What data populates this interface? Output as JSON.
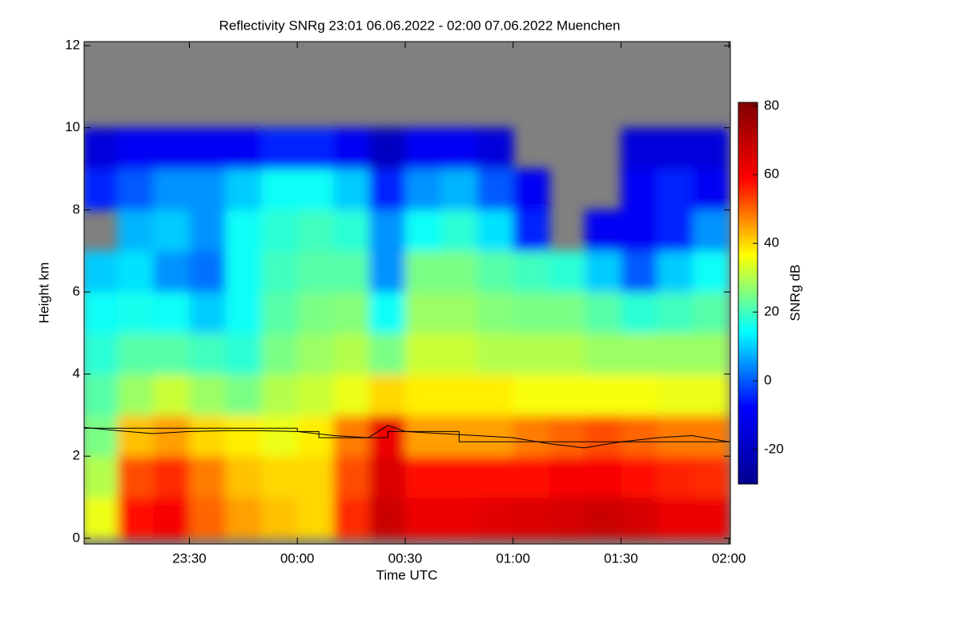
{
  "chart_data": {
    "type": "heatmap",
    "title": "Reflectivity SNRg   23:01 06.06.2022 - 02:00 07.06.2022 Muenchen",
    "x_label": "Time UTC",
    "y_label": "Height km",
    "colorbar_label": "SNRg dB",
    "xlim": [
      23.012,
      26.007
    ],
    "xticks": [
      {
        "value": 23.5,
        "label": "23:30"
      },
      {
        "value": 24,
        "label": "00:00"
      },
      {
        "value": 24.5,
        "label": "00:30"
      },
      {
        "value": 25,
        "label": "01:00"
      },
      {
        "value": 25.5,
        "label": "01:30"
      },
      {
        "value": 26,
        "label": "02:00"
      }
    ],
    "ylim": [
      -0.14,
      12.1
    ],
    "yticks": [
      0,
      2,
      4,
      6,
      8,
      10,
      12
    ],
    "zlim": [
      -30,
      81
    ],
    "zticks": [
      -20,
      0,
      20,
      40,
      60,
      80
    ],
    "colormap": [
      "#00008f",
      "#0000ff",
      "#00ffff",
      "#ffff00",
      "#ff0000",
      "#800000"
    ],
    "missing_color": "#808080",
    "x_bins": [
      23,
      23.167,
      23.333,
      23.5,
      23.667,
      23.833,
      24,
      24.167,
      24.333,
      24.5,
      24.667,
      24.833,
      25,
      25.167,
      25.333,
      25.5,
      25.667,
      25.833,
      26
    ],
    "y_bins": [
      0,
      1,
      2,
      3,
      4,
      5,
      6,
      7,
      8,
      9,
      10,
      11,
      12
    ],
    "z": [
      [
        35,
        58,
        60,
        50,
        45,
        42,
        40,
        55,
        68,
        62,
        62,
        64,
        65,
        66,
        68,
        66,
        62,
        62
      ],
      [
        30,
        52,
        55,
        48,
        42,
        40,
        40,
        52,
        65,
        58,
        58,
        58,
        58,
        60,
        60,
        58,
        56,
        55
      ],
      [
        25,
        42,
        45,
        40,
        38,
        35,
        38,
        48,
        62,
        45,
        45,
        45,
        48,
        50,
        52,
        50,
        48,
        48
      ],
      [
        22,
        28,
        32,
        28,
        25,
        30,
        32,
        35,
        40,
        38,
        38,
        38,
        36,
        36,
        36,
        36,
        35,
        35
      ],
      [
        18,
        22,
        22,
        20,
        18,
        25,
        28,
        30,
        25,
        32,
        32,
        30,
        30,
        30,
        28,
        28,
        28,
        28
      ],
      [
        15,
        16,
        15,
        10,
        15,
        22,
        25,
        26,
        15,
        28,
        28,
        26,
        25,
        25,
        22,
        18,
        20,
        22
      ],
      [
        10,
        12,
        5,
        2,
        15,
        20,
        22,
        22,
        5,
        25,
        25,
        22,
        20,
        18,
        10,
        0,
        10,
        15
      ],
      [
        null,
        8,
        10,
        5,
        15,
        18,
        20,
        18,
        5,
        15,
        18,
        12,
        -5,
        null,
        -10,
        -10,
        -5,
        5
      ],
      [
        -5,
        0,
        5,
        5,
        10,
        15,
        15,
        10,
        -5,
        5,
        8,
        0,
        -10,
        null,
        null,
        -10,
        -5,
        -10
      ],
      [
        -15,
        -10,
        -10,
        -10,
        -10,
        -5,
        -5,
        -10,
        -20,
        -10,
        -10,
        -15,
        null,
        null,
        null,
        -15,
        -15,
        -15
      ],
      [
        null,
        null,
        null,
        null,
        null,
        null,
        null,
        null,
        null,
        null,
        null,
        null,
        null,
        null,
        null,
        null,
        null,
        null
      ],
      [
        null,
        null,
        null,
        null,
        null,
        null,
        null,
        null,
        null,
        null,
        null,
        null,
        null,
        null,
        null,
        null,
        null,
        null
      ]
    ],
    "series": [
      {
        "color": "#000000",
        "x": [
          23.012,
          24.0,
          24.0,
          24.1,
          24.1,
          24.42,
          24.42,
          24.75,
          24.75,
          26.007
        ],
        "values": [
          2.68,
          2.68,
          2.6,
          2.6,
          2.45,
          2.45,
          2.6,
          2.6,
          2.35,
          2.35
        ]
      },
      {
        "color": "#000000",
        "x": [
          23.012,
          23.17,
          23.33,
          23.5,
          23.67,
          23.83,
          24.0,
          24.17,
          24.33,
          24.42,
          24.5,
          24.67,
          24.83,
          25.0,
          25.17,
          25.33,
          25.5,
          25.67,
          25.83,
          26.0
        ],
        "values": [
          2.7,
          2.62,
          2.55,
          2.6,
          2.62,
          2.62,
          2.6,
          2.5,
          2.45,
          2.75,
          2.6,
          2.55,
          2.5,
          2.45,
          2.3,
          2.2,
          2.35,
          2.45,
          2.5,
          2.35
        ]
      }
    ]
  }
}
